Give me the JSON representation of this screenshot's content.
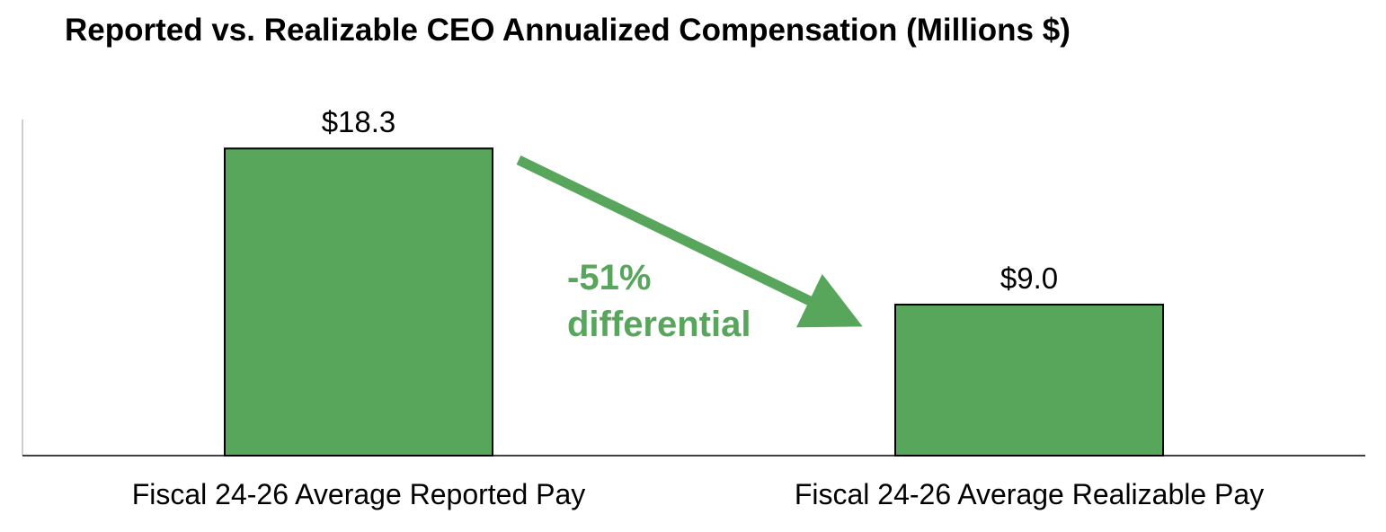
{
  "chart_data": {
    "type": "bar",
    "title": "Reported vs. Realizable CEO Annualized Compensation (Millions $)",
    "categories": [
      "Fiscal 24-26 Average Reported Pay",
      "Fiscal 24-26 Average Realizable Pay"
    ],
    "values": [
      18.3,
      9.0
    ],
    "data_labels": [
      "$18.3",
      "$9.0"
    ],
    "xlabel": "",
    "ylabel": "",
    "ylim": [
      0,
      20
    ],
    "grid": false,
    "legend": "none",
    "bar_color": "#57a65b",
    "annotation": {
      "lines": [
        "-51%",
        "differential"
      ],
      "color": "#57a65b",
      "arrow": "from first bar to second bar"
    }
  }
}
